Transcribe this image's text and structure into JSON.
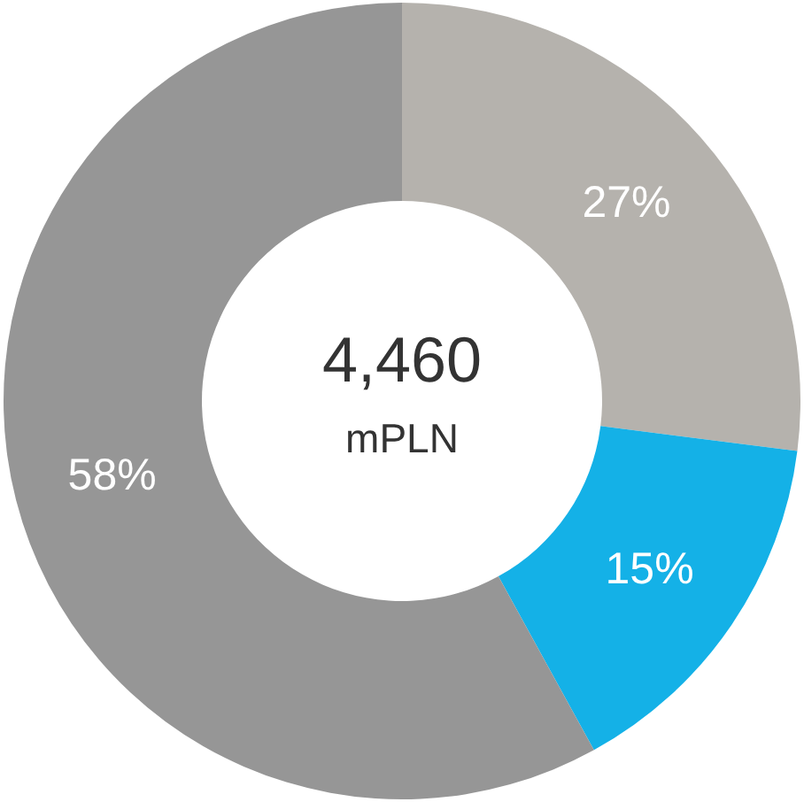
{
  "chart_data": {
    "type": "donut",
    "categories": [
      null,
      null,
      null
    ],
    "values": [
      27,
      15,
      58
    ],
    "colors": [
      "#b5b2ad",
      "#14b1e7",
      "#969696"
    ],
    "value_labels": [
      "27%",
      "15%",
      "58%"
    ],
    "annotations": [
      "4,460",
      "mPLN"
    ]
  }
}
